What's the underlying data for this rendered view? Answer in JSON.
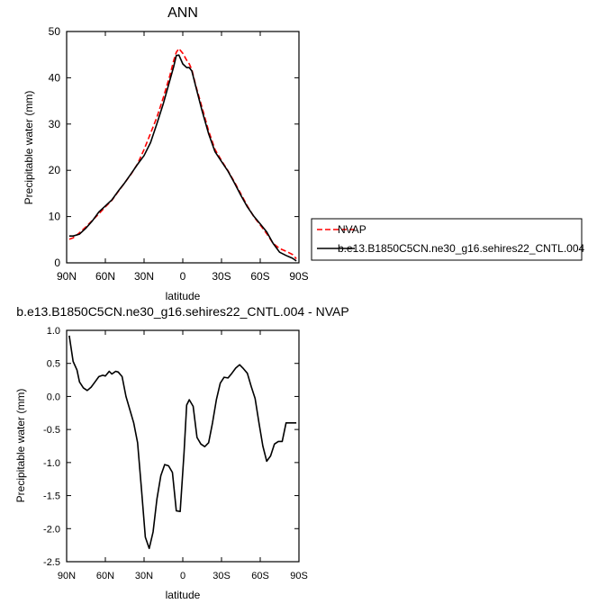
{
  "chart_data": [
    {
      "type": "line",
      "title": "ANN",
      "xlabel": "latitude",
      "ylabel": "Precipitable water (mm)",
      "xlim": [
        90,
        -90
      ],
      "ylim": [
        0,
        50
      ],
      "x_ticks": [
        {
          "value": 90,
          "label": "90N"
        },
        {
          "value": 60,
          "label": "60N"
        },
        {
          "value": 30,
          "label": "30N"
        },
        {
          "value": 0,
          "label": "0"
        },
        {
          "value": -30,
          "label": "30S"
        },
        {
          "value": -60,
          "label": "60S"
        },
        {
          "value": -90,
          "label": "90S"
        }
      ],
      "y_ticks": [
        {
          "value": 0,
          "label": "0"
        },
        {
          "value": 10,
          "label": "10"
        },
        {
          "value": 20,
          "label": "20"
        },
        {
          "value": 30,
          "label": "30"
        },
        {
          "value": 40,
          "label": "40"
        },
        {
          "value": 50,
          "label": "50"
        }
      ],
      "legend_position": "right",
      "series": [
        {
          "name": "NVAP",
          "color": "#ff0000",
          "dash": "dashed",
          "x": [
            88,
            85,
            80,
            75,
            70,
            65,
            60,
            55,
            50,
            45,
            40,
            35,
            30,
            25,
            20,
            15,
            10,
            7,
            5,
            3,
            0,
            -3,
            -5,
            -7,
            -10,
            -15,
            -20,
            -25,
            -30,
            -35,
            -40,
            -45,
            -50,
            -55,
            -60,
            -65,
            -70,
            -75,
            -80,
            -85,
            -88
          ],
          "y": [
            5.1,
            5.4,
            6.5,
            7.8,
            9.2,
            10.6,
            12.1,
            13.5,
            15.4,
            17.3,
            19.2,
            21.4,
            24.5,
            28.0,
            31.5,
            35.8,
            40.5,
            43.8,
            45.5,
            46.3,
            45.3,
            43.8,
            43.0,
            41.8,
            38.4,
            33.5,
            28.5,
            24.5,
            22.1,
            19.9,
            17.5,
            14.9,
            12.3,
            10.0,
            8.2,
            6.3,
            4.2,
            3.1,
            2.5,
            1.8,
            0.9
          ]
        },
        {
          "name": "b.e13.B1850C5CN.ne30_g16.sehires22_CNTL.004",
          "color": "#000000",
          "dash": "solid",
          "x": [
            88,
            85,
            80,
            75,
            70,
            65,
            60,
            55,
            50,
            45,
            40,
            35,
            30,
            25,
            20,
            15,
            10,
            7,
            5,
            3,
            0,
            -3,
            -5,
            -7,
            -10,
            -15,
            -20,
            -25,
            -30,
            -35,
            -40,
            -45,
            -50,
            -55,
            -60,
            -65,
            -70,
            -75,
            -80,
            -85,
            -88
          ],
          "y": [
            5.8,
            5.8,
            6.2,
            7.5,
            9.1,
            11.0,
            12.3,
            13.6,
            15.5,
            17.3,
            19.3,
            21.3,
            23.2,
            26.0,
            30.1,
            34.5,
            39.5,
            42.5,
            44.8,
            44.9,
            43.0,
            42.2,
            42.2,
            41.5,
            38.2,
            32.8,
            27.9,
            24.0,
            21.9,
            19.8,
            17.3,
            14.6,
            12.1,
            10.1,
            8.4,
            6.7,
            4.2,
            2.3,
            1.6,
            1.0,
            0.4
          ]
        }
      ]
    },
    {
      "type": "line",
      "title": "b.e13.B1850C5CN.ne30_g16.sehires22_CNTL.004 - NVAP",
      "xlabel": "latitude",
      "ylabel": "Precipitable water (mm)",
      "xlim": [
        90,
        -90
      ],
      "ylim": [
        -2.5,
        1.0
      ],
      "x_ticks": [
        {
          "value": 90,
          "label": "90N"
        },
        {
          "value": 60,
          "label": "60N"
        },
        {
          "value": 30,
          "label": "30N"
        },
        {
          "value": 0,
          "label": "0"
        },
        {
          "value": -30,
          "label": "30S"
        },
        {
          "value": -60,
          "label": "60S"
        },
        {
          "value": -90,
          "label": "90S"
        }
      ],
      "y_ticks": [
        {
          "value": 1.0,
          "label": "1.0"
        },
        {
          "value": 0.5,
          "label": "0.5"
        },
        {
          "value": 0.0,
          "label": "0.0"
        },
        {
          "value": -0.5,
          "label": "-0.5"
        },
        {
          "value": -1.0,
          "label": "-1.0"
        },
        {
          "value": -1.5,
          "label": "-1.5"
        },
        {
          "value": -2.0,
          "label": "-2.0"
        },
        {
          "value": -2.5,
          "label": "-2.5"
        }
      ],
      "series": [
        {
          "color": "#000000",
          "dash": "solid",
          "x": [
            88,
            85,
            82,
            80,
            77,
            74,
            71,
            68,
            65,
            62,
            60,
            57,
            55,
            52,
            50,
            47,
            44,
            41,
            38,
            35,
            32,
            29,
            26,
            23,
            20,
            17,
            14,
            11,
            8,
            5,
            2,
            -1,
            -3,
            -5,
            -8,
            -11,
            -14,
            -17,
            -20,
            -23,
            -26,
            -29,
            -32,
            -35,
            -38,
            -41,
            -44,
            -47,
            -50,
            -53,
            -56,
            -59,
            -62,
            -65,
            -68,
            -71,
            -74,
            -77,
            -80,
            -83,
            -86,
            -88
          ],
          "y": [
            0.92,
            0.53,
            0.4,
            0.22,
            0.13,
            0.09,
            0.14,
            0.22,
            0.3,
            0.32,
            0.31,
            0.38,
            0.34,
            0.38,
            0.37,
            0.3,
            0.0,
            -0.2,
            -0.4,
            -0.7,
            -1.4,
            -2.13,
            -2.3,
            -2.05,
            -1.55,
            -1.2,
            -1.03,
            -1.05,
            -1.15,
            -1.73,
            -1.74,
            -0.85,
            -0.13,
            -0.05,
            -0.15,
            -0.62,
            -0.72,
            -0.76,
            -0.7,
            -0.4,
            -0.05,
            0.2,
            0.29,
            0.28,
            0.35,
            0.43,
            0.48,
            0.42,
            0.35,
            0.15,
            -0.03,
            -0.4,
            -0.75,
            -0.98,
            -0.9,
            -0.72,
            -0.68,
            -0.68,
            -0.4,
            -0.4,
            -0.4,
            -0.4
          ]
        }
      ]
    }
  ]
}
